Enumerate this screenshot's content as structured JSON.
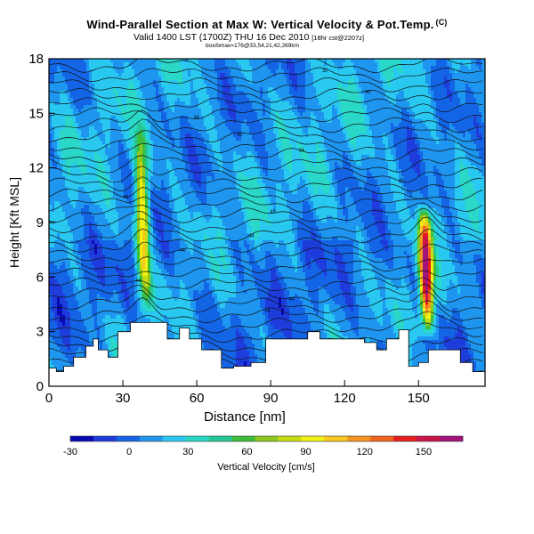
{
  "header": {
    "title": "Wind-Parallel Section at Max W: Vertical Velocity & Pot.Temp.",
    "title_sup": "(C)",
    "valid_main": "Valid 1400 LST (1700Z) THU 16 Dec 2010",
    "valid_small": "[18hr cst@2207z]",
    "info_line": "box/bmax=176@33,54,21,42,269km"
  },
  "chart_data": {
    "type": "heatmap",
    "title": "Wind-Parallel Section at Max W: Vertical Velocity & Pot.Temp.",
    "xlabel": "Distance [nm]",
    "ylabel": "Height [Kft MSL]",
    "xlim": [
      0,
      177
    ],
    "ylim": [
      0,
      18
    ],
    "x_ticks": [
      0,
      30,
      60,
      90,
      120,
      150
    ],
    "y_ticks": [
      0,
      3,
      6,
      9,
      12,
      15,
      18
    ],
    "colorbar": {
      "label": "Vertical Velocity [cm/s]",
      "ticks": [
        -30,
        0,
        30,
        60,
        90,
        120,
        150
      ],
      "min": -30,
      "max": 170,
      "colors": [
        "#0a0ab4",
        "#1e3cdc",
        "#1464e6",
        "#1e96f0",
        "#28c8f0",
        "#2ad8c8",
        "#24c896",
        "#3cbe3c",
        "#8cc81e",
        "#c8dc14",
        "#f0f014",
        "#fac81e",
        "#f5961e",
        "#f0641e",
        "#e61e1e",
        "#c81446",
        "#a0147c"
      ]
    },
    "updrafts": [
      {
        "center_nm": 38,
        "base_kft": 3.5,
        "top_kft": 14.5,
        "peak_cm_s": 95
      },
      {
        "center_nm": 153,
        "base_kft": 2.5,
        "top_kft": 10,
        "peak_cm_s": 165
      }
    ],
    "theta_contour_labels": [
      "44",
      "44",
      "44",
      "44",
      "44",
      "42",
      "40",
      "40",
      "34",
      "42",
      "34",
      "40",
      "32",
      "30",
      "40",
      "34",
      "28",
      "30",
      "28",
      "30",
      "22",
      "28",
      "30",
      "30",
      "34",
      "22",
      "34",
      "32",
      "44",
      "30",
      "22",
      "34"
    ],
    "terrain_profile_kft": [
      [
        0,
        1.0
      ],
      [
        3,
        0.8
      ],
      [
        6,
        1.1
      ],
      [
        10,
        1.6
      ],
      [
        15,
        2.2
      ],
      [
        18,
        2.6
      ],
      [
        20,
        2.0
      ],
      [
        24,
        1.6
      ],
      [
        28,
        3.0
      ],
      [
        33,
        3.5
      ],
      [
        45,
        3.5
      ],
      [
        48,
        2.6
      ],
      [
        53,
        3.2
      ],
      [
        57,
        2.6
      ],
      [
        62,
        2.0
      ],
      [
        70,
        1.0
      ],
      [
        75,
        1.1
      ],
      [
        82,
        1.3
      ],
      [
        88,
        2.6
      ],
      [
        100,
        2.6
      ],
      [
        105,
        3.0
      ],
      [
        110,
        2.6
      ],
      [
        122,
        2.6
      ],
      [
        128,
        2.4
      ],
      [
        133,
        2.0
      ],
      [
        137,
        2.6
      ],
      [
        142,
        3.1
      ],
      [
        146,
        1.1
      ],
      [
        150,
        1.3
      ],
      [
        154,
        2.0
      ],
      [
        162,
        2.0
      ],
      [
        167,
        1.3
      ],
      [
        172,
        0.8
      ],
      [
        177,
        0.6
      ]
    ]
  }
}
